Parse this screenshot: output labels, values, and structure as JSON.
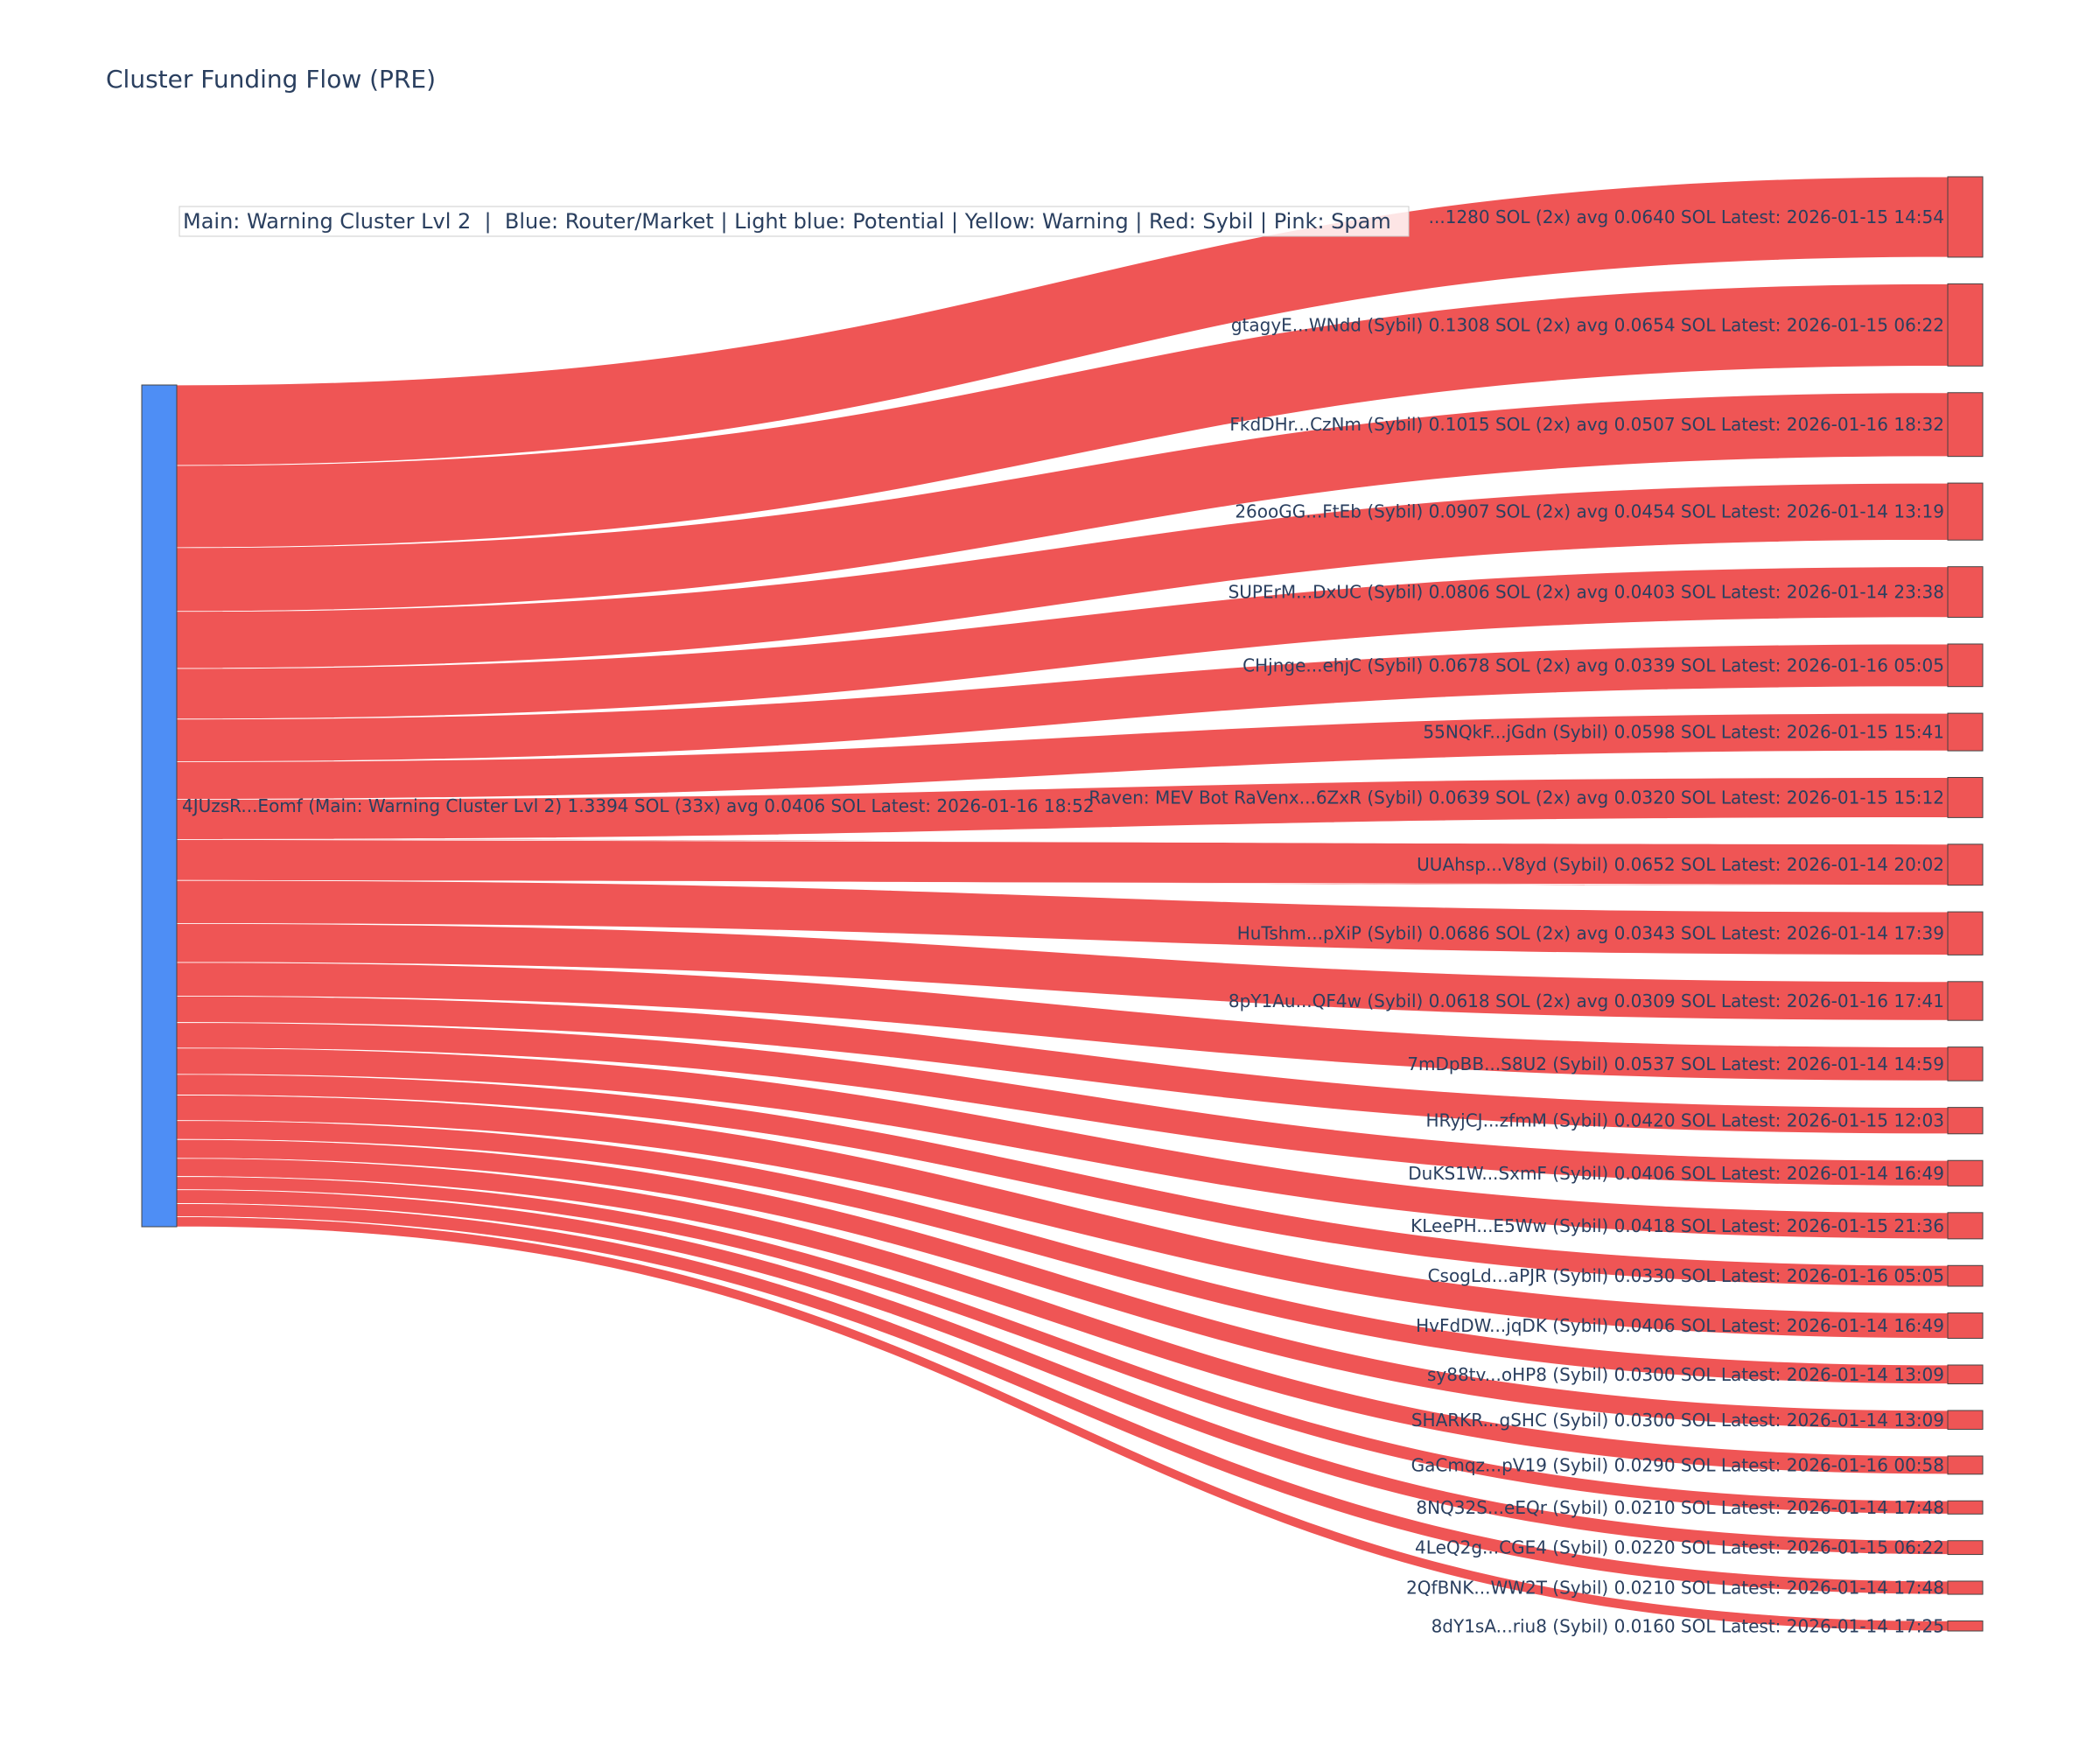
{
  "title": "Cluster Funding Flow (PRE)",
  "legend_note": "Main: Warning Cluster Lvl 2  |  Blue: Router/Market | Light blue: Potential | Yellow: Warning | Red: Sybil | Pink: Spam",
  "colors": {
    "source_node": "#4e8ef5",
    "target_node": "#ef5555",
    "link": "#ef5555",
    "node_border": "#444444",
    "text": "#2a3f5f"
  },
  "chart_data": {
    "type": "sankey",
    "source": {
      "label": "4JUzsR...Eomf (Main: Warning Cluster Lvl 2) 1.3394 SOL (33x) avg 0.0406 SOL Latest: 2026-01-16 18:52",
      "value": 1.3394,
      "category": "Main: Warning Cluster Lvl 2"
    },
    "targets": [
      {
        "label": "...1280 SOL (2x) avg 0.0640 SOL Latest: 2026-01-15 14:54",
        "value": 0.128,
        "category": "Sybil"
      },
      {
        "label": "gtagyE...WNdd (Sybil) 0.1308 SOL (2x) avg 0.0654 SOL Latest: 2026-01-15 06:22",
        "value": 0.1308,
        "category": "Sybil"
      },
      {
        "label": "FkdDHr...CzNm (Sybil) 0.1015 SOL (2x) avg 0.0507 SOL Latest: 2026-01-16 18:32",
        "value": 0.1015,
        "category": "Sybil"
      },
      {
        "label": "26ooGG...FtEb (Sybil) 0.0907 SOL (2x) avg 0.0454 SOL Latest: 2026-01-14 13:19",
        "value": 0.0907,
        "category": "Sybil"
      },
      {
        "label": "SUPErM...DxUC (Sybil) 0.0806 SOL (2x) avg 0.0403 SOL Latest: 2026-01-14 23:38",
        "value": 0.0806,
        "category": "Sybil"
      },
      {
        "label": "CHjnge...ehjC (Sybil) 0.0678 SOL (2x) avg 0.0339 SOL Latest: 2026-01-16 05:05",
        "value": 0.0678,
        "category": "Sybil"
      },
      {
        "label": "55NQkF...jGdn (Sybil) 0.0598 SOL Latest: 2026-01-15 15:41",
        "value": 0.0598,
        "category": "Sybil"
      },
      {
        "label": "Raven: MEV Bot RaVenx...6ZxR (Sybil) 0.0639 SOL (2x) avg 0.0320 SOL Latest: 2026-01-15 15:12",
        "value": 0.0639,
        "category": "Sybil"
      },
      {
        "label": "UUAhsp...V8yd (Sybil) 0.0652 SOL Latest: 2026-01-14 20:02",
        "value": 0.0652,
        "category": "Sybil"
      },
      {
        "label": "HuTshm...pXiP (Sybil) 0.0686 SOL (2x) avg 0.0343 SOL Latest: 2026-01-14 17:39",
        "value": 0.0686,
        "category": "Sybil"
      },
      {
        "label": "8pY1Au...QF4w (Sybil) 0.0618 SOL (2x) avg 0.0309 SOL Latest: 2026-01-16 17:41",
        "value": 0.0618,
        "category": "Sybil"
      },
      {
        "label": "7mDpBB...S8U2 (Sybil) 0.0537 SOL Latest: 2026-01-14 14:59",
        "value": 0.0537,
        "category": "Sybil"
      },
      {
        "label": "HRyjCJ...zfmM (Sybil) 0.0420 SOL Latest: 2026-01-15 12:03",
        "value": 0.042,
        "category": "Sybil"
      },
      {
        "label": "DuKS1W...SxmF (Sybil) 0.0406 SOL Latest: 2026-01-14 16:49",
        "value": 0.0406,
        "category": "Sybil"
      },
      {
        "label": "KLeePH...E5Ww (Sybil) 0.0418 SOL Latest: 2026-01-15 21:36",
        "value": 0.0418,
        "category": "Sybil"
      },
      {
        "label": "CsogLd...aPJR (Sybil) 0.0330 SOL Latest: 2026-01-16 05:05",
        "value": 0.033,
        "category": "Sybil"
      },
      {
        "label": "HvFdDW...jqDK (Sybil) 0.0406 SOL Latest: 2026-01-14 16:49",
        "value": 0.0406,
        "category": "Sybil"
      },
      {
        "label": "sy88tv...oHP8 (Sybil) 0.0300 SOL Latest: 2026-01-14 13:09",
        "value": 0.03,
        "category": "Sybil"
      },
      {
        "label": "SHARKR...gSHC (Sybil) 0.0300 SOL Latest: 2026-01-14 13:09",
        "value": 0.03,
        "category": "Sybil"
      },
      {
        "label": "GaCmqz...pV19 (Sybil) 0.0290 SOL Latest: 2026-01-16 00:58",
        "value": 0.029,
        "category": "Sybil"
      },
      {
        "label": "8NQ32S...eEQr (Sybil) 0.0210 SOL Latest: 2026-01-14 17:48",
        "value": 0.021,
        "category": "Sybil"
      },
      {
        "label": "4LeQ2g...CGE4 (Sybil) 0.0220 SOL Latest: 2026-01-15 06:22",
        "value": 0.022,
        "category": "Sybil"
      },
      {
        "label": "2QfBNK...WW2T (Sybil) 0.0210 SOL Latest: 2026-01-14 17:48",
        "value": 0.021,
        "category": "Sybil"
      },
      {
        "label": "8dY1sA...riu8 (Sybil) 0.0160 SOL Latest: 2026-01-14 17:25",
        "value": 0.016,
        "category": "Sybil"
      }
    ]
  }
}
